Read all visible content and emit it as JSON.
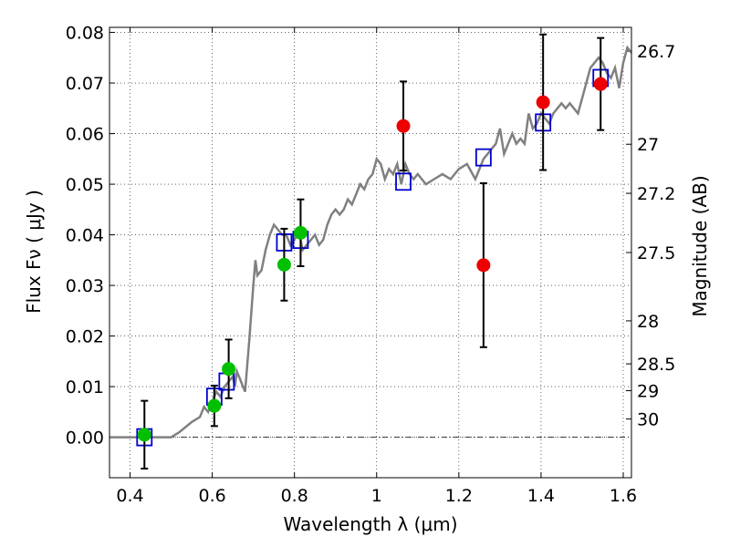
{
  "chart_data": {
    "type": "scatter",
    "xlabel": "Wavelength  λ (μm)",
    "ylabel": "Flux  Fν  ( μJy )",
    "ylabel_right": "Magnitude (AB)",
    "xlim": [
      0.35,
      1.62
    ],
    "ylim": [
      -0.008,
      0.081
    ],
    "x_ticks": [
      0.4,
      0.6,
      0.8,
      1.0,
      1.2,
      1.4,
      1.6
    ],
    "x_tick_labels": [
      "0.4",
      "0.6",
      "0.8",
      "1",
      "1.2",
      "1.4",
      "1.6"
    ],
    "y_ticks": [
      0.0,
      0.01,
      0.02,
      0.03,
      0.04,
      0.05,
      0.06,
      0.07,
      0.08
    ],
    "y_tick_labels": [
      "0.00",
      "0.01",
      "0.02",
      "0.03",
      "0.04",
      "0.05",
      "0.06",
      "0.07",
      "0.08"
    ],
    "right_ticks": [
      {
        "label": "26.7",
        "flux": 0.0763
      },
      {
        "label": "27",
        "flux": 0.0579
      },
      {
        "label": "27.2",
        "flux": 0.0482
      },
      {
        "label": "27.5",
        "flux": 0.0365
      },
      {
        "label": "28",
        "flux": 0.023
      },
      {
        "label": "28.5",
        "flux": 0.0145
      },
      {
        "label": "29",
        "flux": 0.0092
      },
      {
        "label": "30",
        "flux": 0.0036
      }
    ],
    "grid": true,
    "model_sed": {
      "color": "#808080",
      "x": [
        0.35,
        0.5,
        0.52,
        0.55,
        0.57,
        0.58,
        0.59,
        0.6,
        0.61,
        0.62,
        0.63,
        0.64,
        0.65,
        0.655,
        0.66,
        0.665,
        0.67,
        0.675,
        0.68,
        0.69,
        0.7,
        0.705,
        0.71,
        0.72,
        0.73,
        0.74,
        0.75,
        0.76,
        0.77,
        0.78,
        0.79,
        0.8,
        0.81,
        0.82,
        0.83,
        0.84,
        0.85,
        0.86,
        0.87,
        0.88,
        0.89,
        0.9,
        0.91,
        0.92,
        0.93,
        0.94,
        0.95,
        0.96,
        0.97,
        0.98,
        0.99,
        1.0,
        1.01,
        1.02,
        1.03,
        1.04,
        1.05,
        1.06,
        1.07,
        1.08,
        1.09,
        1.1,
        1.12,
        1.14,
        1.16,
        1.18,
        1.2,
        1.22,
        1.24,
        1.25,
        1.26,
        1.27,
        1.28,
        1.29,
        1.3,
        1.31,
        1.32,
        1.33,
        1.34,
        1.35,
        1.36,
        1.37,
        1.38,
        1.39,
        1.4,
        1.41,
        1.42,
        1.43,
        1.44,
        1.45,
        1.46,
        1.47,
        1.48,
        1.49,
        1.5,
        1.51,
        1.52,
        1.53,
        1.54,
        1.55,
        1.56,
        1.57,
        1.58,
        1.59,
        1.6,
        1.61,
        1.62
      ],
      "y": [
        0.0,
        0.0,
        0.001,
        0.003,
        0.004,
        0.006,
        0.005,
        0.007,
        0.009,
        0.008,
        0.01,
        0.011,
        0.012,
        0.01,
        0.013,
        0.012,
        0.011,
        0.01,
        0.009,
        0.019,
        0.03,
        0.035,
        0.032,
        0.033,
        0.037,
        0.04,
        0.042,
        0.041,
        0.04,
        0.04,
        0.038,
        0.039,
        0.041,
        0.037,
        0.038,
        0.039,
        0.04,
        0.038,
        0.039,
        0.042,
        0.044,
        0.045,
        0.044,
        0.045,
        0.047,
        0.046,
        0.048,
        0.05,
        0.049,
        0.051,
        0.052,
        0.055,
        0.054,
        0.051,
        0.053,
        0.052,
        0.054,
        0.05,
        0.054,
        0.052,
        0.051,
        0.052,
        0.05,
        0.051,
        0.052,
        0.051,
        0.053,
        0.054,
        0.051,
        0.053,
        0.055,
        0.056,
        0.057,
        0.058,
        0.061,
        0.056,
        0.058,
        0.06,
        0.058,
        0.059,
        0.058,
        0.064,
        0.061,
        0.062,
        0.064,
        0.063,
        0.062,
        0.064,
        0.065,
        0.066,
        0.065,
        0.066,
        0.065,
        0.064,
        0.067,
        0.07,
        0.073,
        0.074,
        0.075,
        0.074,
        0.072,
        0.071,
        0.073,
        0.069,
        0.074,
        0.077,
        0.076
      ]
    },
    "model_boxes": {
      "color": "#0000cc",
      "x": [
        0.435,
        0.605,
        0.635,
        0.775,
        0.815,
        1.065,
        1.26,
        1.405,
        1.545
      ],
      "y": [
        0.0,
        0.008,
        0.011,
        0.0385,
        0.039,
        0.0505,
        0.0553,
        0.0622,
        0.071
      ]
    },
    "series": [
      {
        "name": "",
        "color": "#00c000",
        "x": [
          0.435,
          0.605,
          0.64,
          0.775,
          0.815
        ],
        "y": [
          0.0005,
          0.0062,
          0.0135,
          0.0341,
          0.0404
        ],
        "yerr": [
          0.0067,
          0.004,
          0.0058,
          0.0071,
          0.0066
        ]
      },
      {
        "name": "",
        "color": "#ee0000",
        "x": [
          1.065,
          1.26,
          1.405,
          1.545
        ],
        "y": [
          0.0615,
          0.034,
          0.0662,
          0.0698
        ],
        "yerr": [
          0.0088,
          0.0162,
          0.0134,
          0.0091
        ]
      }
    ]
  }
}
